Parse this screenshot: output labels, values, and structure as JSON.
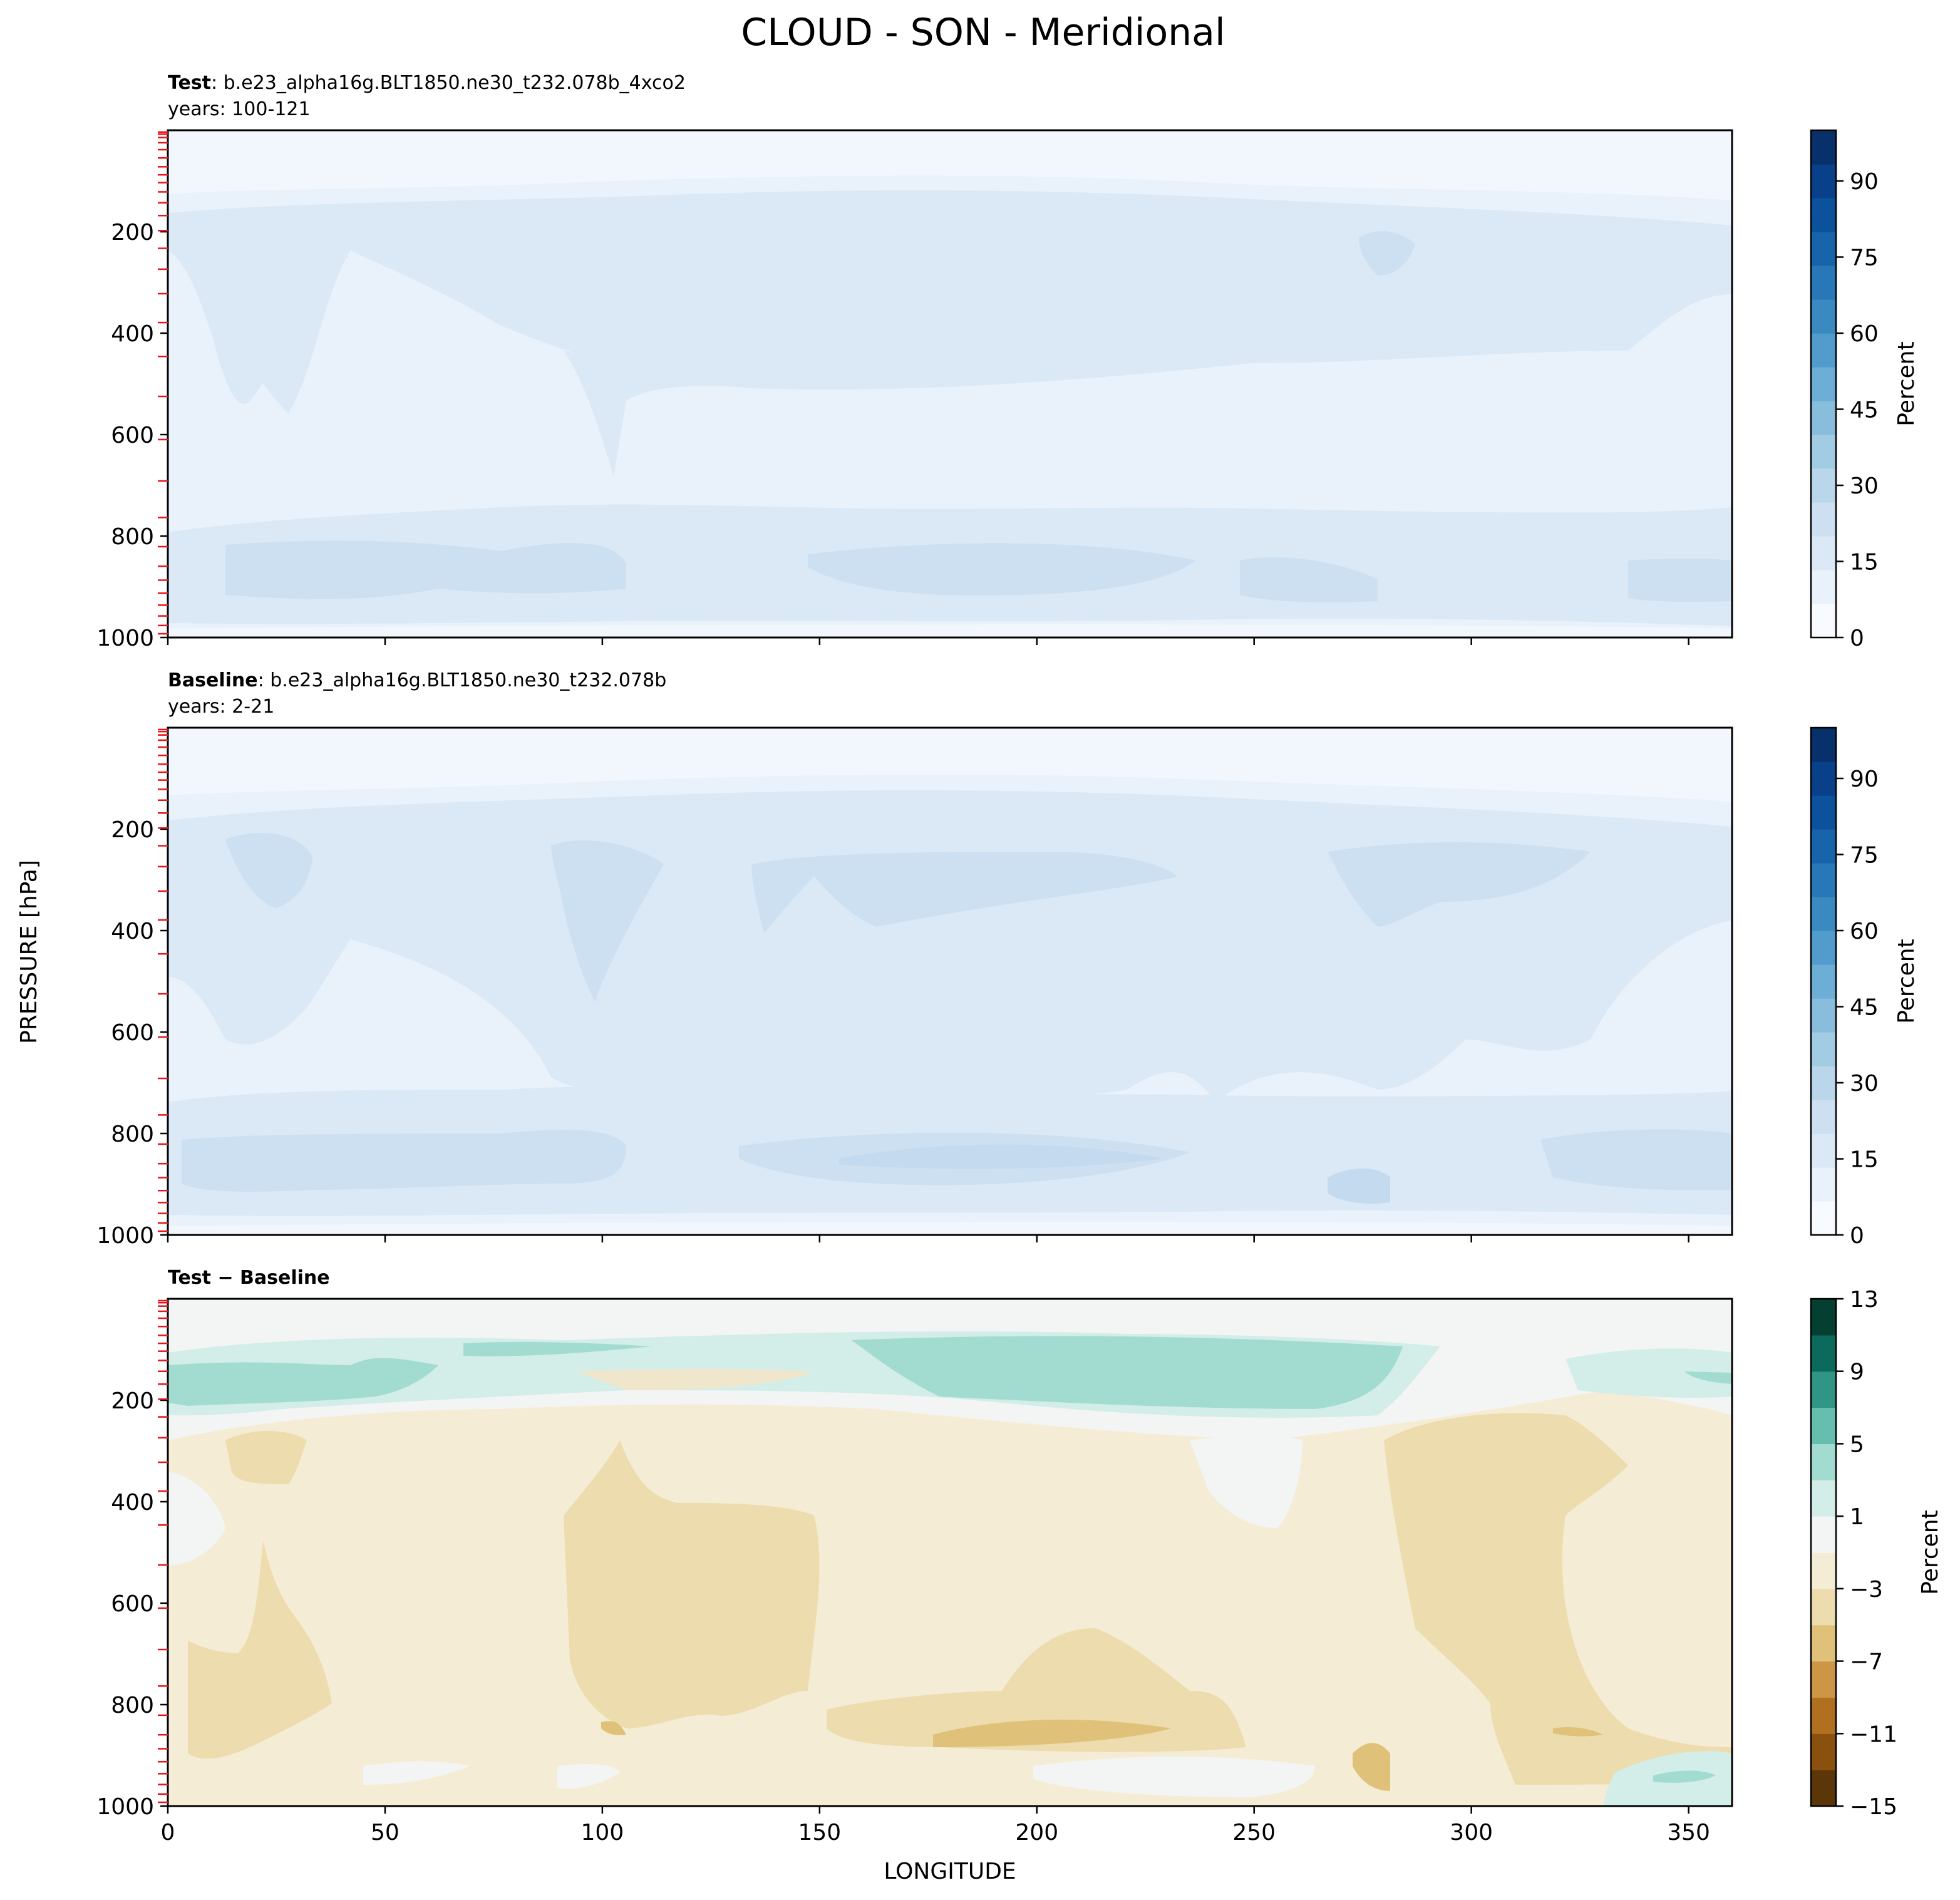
{
  "figure": {
    "title": "CLOUD - SON - Meridional",
    "ylabel": "PRESSURE [hPa]",
    "xlabel": "LONGITUDE"
  },
  "chart_data": [
    {
      "type": "contour",
      "panel": "test",
      "title_bold": "Test",
      "title_rest": ": b.e23_alpha16g.BLT1850.ne30_t232.078b_4xco2",
      "subtitle": "years: 100-121",
      "xlim": [
        0,
        360
      ],
      "ylim": [
        1000,
        0
      ],
      "yticks": [
        "200",
        "400",
        "600",
        "800",
        "1000"
      ],
      "colorbar": {
        "label": "Percent",
        "range": [
          0,
          100
        ],
        "ticks": [
          "0",
          "15",
          "30",
          "45",
          "60",
          "75",
          "90"
        ],
        "colors": [
          "#f7fbff",
          "#e9f2fb",
          "#dbe9f6",
          "#cde0f1",
          "#b9d6ea",
          "#a2cce3",
          "#88bedc",
          "#6caed6",
          "#519ccc",
          "#3a8ac1",
          "#2878b8",
          "#1764ab",
          "#0b519c",
          "#08408a",
          "#08306b"
        ]
      }
    },
    {
      "type": "contour",
      "panel": "baseline",
      "title_bold": "Baseline",
      "title_rest": ": b.e23_alpha16g.BLT1850.ne30_t232.078b",
      "subtitle": "years: 2-21",
      "xlim": [
        0,
        360
      ],
      "ylim": [
        1000,
        0
      ],
      "yticks": [
        "200",
        "400",
        "600",
        "800",
        "1000"
      ],
      "colorbar": {
        "label": "Percent",
        "range": [
          0,
          100
        ],
        "ticks": [
          "0",
          "15",
          "30",
          "45",
          "60",
          "75",
          "90"
        ],
        "colors": [
          "#f7fbff",
          "#e9f2fb",
          "#dbe9f6",
          "#cde0f1",
          "#b9d6ea",
          "#a2cce3",
          "#88bedc",
          "#6caed6",
          "#519ccc",
          "#3a8ac1",
          "#2878b8",
          "#1764ab",
          "#0b519c",
          "#08408a",
          "#08306b"
        ]
      }
    },
    {
      "type": "contour",
      "panel": "difference",
      "title_bold": "Test − Baseline",
      "xlim": [
        0,
        360
      ],
      "ylim": [
        1000,
        0
      ],
      "yticks": [
        "200",
        "400",
        "600",
        "800",
        "1000"
      ],
      "xticks": [
        "0",
        "50",
        "100",
        "150",
        "200",
        "250",
        "300",
        "350"
      ],
      "colorbar": {
        "label": "Percent",
        "range": [
          -15,
          13
        ],
        "ticks": [
          "−15",
          "−11",
          "−7",
          "−3",
          "1",
          "5",
          "9",
          "13"
        ],
        "colors": [
          "#5a3608",
          "#8a500d",
          "#b0701f",
          "#cc9646",
          "#dfc17a",
          "#ecdcae",
          "#f5ecd6",
          "#f3f5f4",
          "#d3ede8",
          "#a2dcd1",
          "#66bfae",
          "#2f9585",
          "#0b6a5b",
          "#053f31"
        ]
      }
    }
  ]
}
